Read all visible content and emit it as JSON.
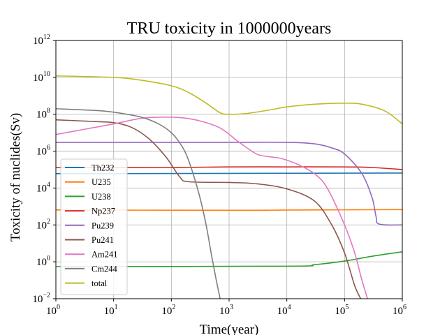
{
  "chart_data": {
    "type": "line",
    "title": "TRU toxicity in 1000000years",
    "xlabel": "Time(year)",
    "ylabel": "Toxicity of nuclides(Sv)",
    "xscale": "log",
    "yscale": "log",
    "xlim": [
      1,
      1000000
    ],
    "ylim": [
      0.01,
      1000000000000
    ],
    "grid": true,
    "legend_position": "lower-left",
    "x_ticks": [
      {
        "value": 1,
        "base": "10",
        "exp": "0"
      },
      {
        "value": 10,
        "base": "10",
        "exp": "1"
      },
      {
        "value": 100,
        "base": "10",
        "exp": "2"
      },
      {
        "value": 1000,
        "base": "10",
        "exp": "3"
      },
      {
        "value": 10000,
        "base": "10",
        "exp": "4"
      },
      {
        "value": 100000,
        "base": "10",
        "exp": "5"
      },
      {
        "value": 1000000,
        "base": "10",
        "exp": "6"
      }
    ],
    "y_ticks": [
      {
        "value": 0.01,
        "base": "10",
        "exp": "−2"
      },
      {
        "value": 1,
        "base": "10",
        "exp": "0"
      },
      {
        "value": 100,
        "base": "10",
        "exp": "2"
      },
      {
        "value": 10000,
        "base": "10",
        "exp": "4"
      },
      {
        "value": 1000000,
        "base": "10",
        "exp": "6"
      },
      {
        "value": 100000000,
        "base": "10",
        "exp": "8"
      },
      {
        "value": 10000000000,
        "base": "10",
        "exp": "10"
      },
      {
        "value": 1000000000000,
        "base": "10",
        "exp": "12"
      }
    ],
    "series": [
      {
        "name": "Th232",
        "color": "#1f77b4",
        "points": [
          [
            1,
            60000
          ],
          [
            1000000,
            65000
          ]
        ]
      },
      {
        "name": "U235",
        "color": "#ff7f0e",
        "points": [
          [
            1,
            650
          ],
          [
            1000,
            620
          ],
          [
            10000,
            640
          ],
          [
            100000,
            660
          ],
          [
            1000000,
            680
          ]
        ]
      },
      {
        "name": "U238",
        "color": "#2ca02c",
        "points": [
          [
            1,
            0.55
          ],
          [
            10000,
            0.58
          ],
          [
            30000,
            0.7
          ],
          [
            100000,
            1.1
          ],
          [
            300000,
            2
          ],
          [
            1000000,
            3.5
          ]
        ]
      },
      {
        "name": "Np237",
        "color": "#d62728",
        "points": [
          [
            1,
            130000
          ],
          [
            100,
            130000
          ],
          [
            1000,
            140000
          ],
          [
            10000,
            140000
          ],
          [
            100000,
            140000
          ],
          [
            300000,
            130000
          ],
          [
            1000000,
            100000
          ]
        ]
      },
      {
        "name": "Pu239",
        "color": "#9467bd",
        "points": [
          [
            1,
            3000000
          ],
          [
            1000,
            3000000
          ],
          [
            10000,
            3000000
          ],
          [
            30000,
            2500000
          ],
          [
            60000,
            1500000
          ],
          [
            100000,
            700000
          ],
          [
            200000,
            60000
          ],
          [
            300000,
            3000
          ],
          [
            350000,
            300
          ],
          [
            400000,
            110
          ],
          [
            1000000,
            100
          ]
        ]
      },
      {
        "name": "Pu241",
        "color": "#8c564b",
        "points": [
          [
            1,
            50000000
          ],
          [
            5,
            40000000
          ],
          [
            10,
            35000000
          ],
          [
            20,
            20000000
          ],
          [
            40,
            5000000
          ],
          [
            80,
            500000
          ],
          [
            140,
            40000
          ],
          [
            200,
            22000
          ],
          [
            1000,
            20000
          ],
          [
            3000,
            17000
          ],
          [
            10000,
            9000
          ],
          [
            30000,
            2000
          ],
          [
            60000,
            100
          ],
          [
            100000,
            3
          ],
          [
            150000,
            0.05
          ],
          [
            190000,
            0.01
          ]
        ]
      },
      {
        "name": "Am241",
        "color": "#e377c2",
        "points": [
          [
            1,
            8000000
          ],
          [
            3,
            15000000
          ],
          [
            10,
            30000000
          ],
          [
            30,
            60000000
          ],
          [
            70,
            70000000
          ],
          [
            150,
            65000000
          ],
          [
            300,
            45000000
          ],
          [
            700,
            18000000
          ],
          [
            1500,
            3000000
          ],
          [
            3000,
            700000
          ],
          [
            5000,
            500000
          ],
          [
            8000,
            400000
          ],
          [
            15000,
            200000
          ],
          [
            30000,
            60000
          ],
          [
            50000,
            10000
          ],
          [
            100000,
            100
          ],
          [
            150000,
            3
          ],
          [
            200000,
            0.1
          ],
          [
            250000,
            0.01
          ]
        ]
      },
      {
        "name": "Cm244",
        "color": "#7f7f7f",
        "points": [
          [
            1,
            200000000
          ],
          [
            5,
            160000000
          ],
          [
            10,
            130000000
          ],
          [
            30,
            70000000
          ],
          [
            60,
            30000000
          ],
          [
            100,
            10000000
          ],
          [
            150,
            2000000
          ],
          [
            200,
            300000
          ],
          [
            300,
            5000
          ],
          [
            400,
            100
          ],
          [
            500,
            2
          ],
          [
            600,
            0.1
          ],
          [
            700,
            0.01
          ]
        ]
      },
      {
        "name": "total",
        "color": "#bcbd22",
        "points": [
          [
            1,
            12000000000
          ],
          [
            10,
            10000000000
          ],
          [
            30,
            7000000000
          ],
          [
            100,
            3500000000
          ],
          [
            200,
            1500000000
          ],
          [
            400,
            400000000
          ],
          [
            700,
            120000000
          ],
          [
            1000,
            100000000
          ],
          [
            2000,
            110000000
          ],
          [
            5000,
            170000000
          ],
          [
            10000,
            250000000
          ],
          [
            30000,
            350000000
          ],
          [
            100000,
            400000000
          ],
          [
            200000,
            350000000
          ],
          [
            500000,
            150000000
          ],
          [
            1000000,
            30000000
          ]
        ]
      }
    ]
  }
}
